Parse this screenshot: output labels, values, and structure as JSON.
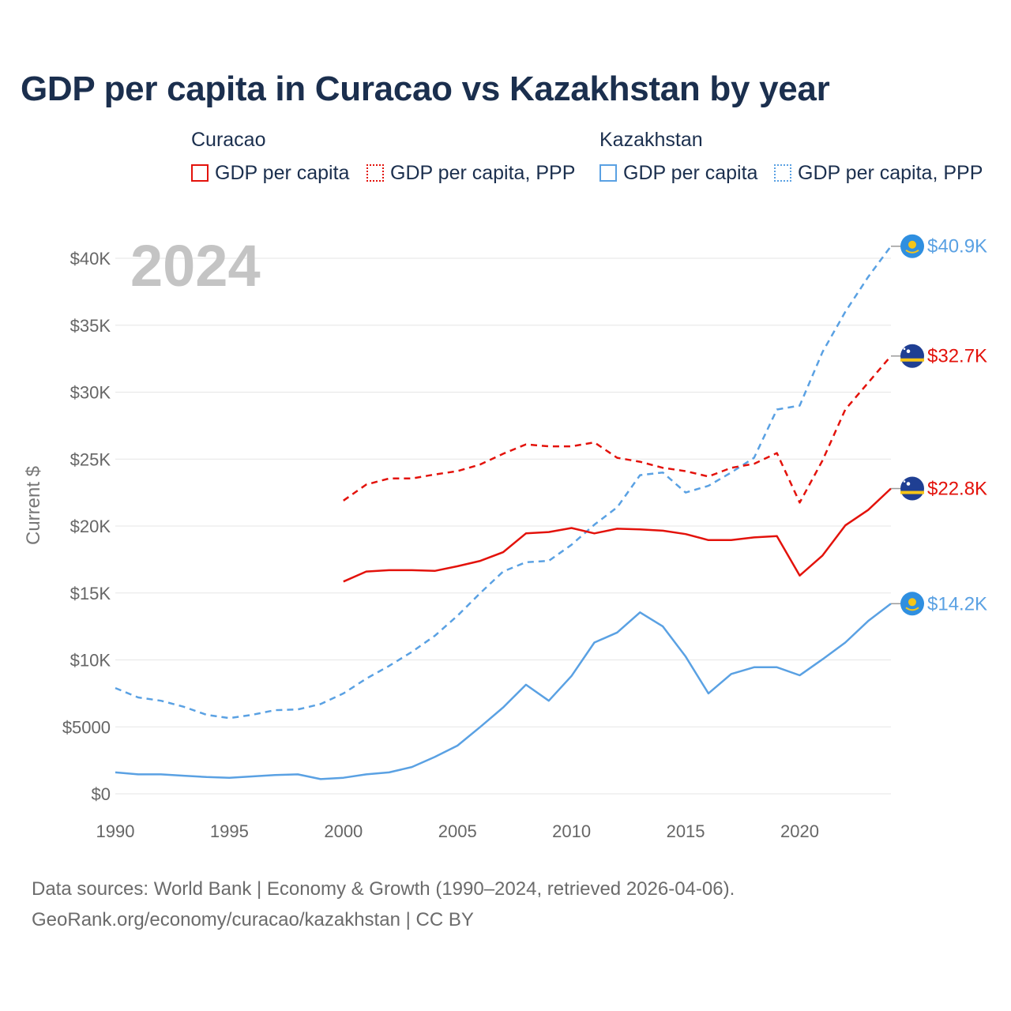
{
  "title": "GDP per capita in Curacao vs Kazakhstan by year",
  "legend": {
    "groups": [
      {
        "name": "Curacao",
        "items": [
          "GDP per capita",
          "GDP per capita, PPP"
        ]
      },
      {
        "name": "Kazakhstan",
        "items": [
          "GDP per capita",
          "GDP per capita, PPP"
        ]
      }
    ]
  },
  "colors": {
    "curacao": "#e3120b",
    "kazakhstan": "#5aa1e3",
    "text": "#1b2f4e",
    "muted": "#666666",
    "grid": "#e6e6e6"
  },
  "year_watermark": "2024",
  "chart_data": {
    "type": "line",
    "title": "GDP per capita in Curacao vs Kazakhstan by year",
    "xlabel": "",
    "ylabel": "Current $",
    "xlim": [
      1990,
      2024
    ],
    "ylim": [
      0,
      42000
    ],
    "x_ticks": [
      1990,
      1995,
      2000,
      2005,
      2010,
      2015,
      2020
    ],
    "x_tick_labels": [
      "1990",
      "1995",
      "2000",
      "2005",
      "2010",
      "2015",
      "2020"
    ],
    "y_ticks": [
      0,
      5000,
      10000,
      15000,
      20000,
      25000,
      30000,
      35000,
      40000
    ],
    "y_tick_labels": [
      "$0",
      "$5000",
      "$10K",
      "$15K",
      "$20K",
      "$25K",
      "$30K",
      "$35K",
      "$40K"
    ],
    "grid": true,
    "series": [
      {
        "name": "Kazakhstan GDP per capita, PPP",
        "country": "kazakhstan",
        "style": "dashed",
        "end_label": "$40.9K",
        "x": [
          1990,
          1991,
          1992,
          1993,
          1994,
          1995,
          1996,
          1997,
          1998,
          1999,
          2000,
          2001,
          2002,
          2003,
          2004,
          2005,
          2006,
          2007,
          2008,
          2009,
          2010,
          2011,
          2012,
          2013,
          2014,
          2015,
          2016,
          2017,
          2018,
          2019,
          2020,
          2021,
          2022,
          2023,
          2024
        ],
        "values": [
          7900,
          7200,
          6950,
          6500,
          5900,
          5650,
          5900,
          6250,
          6300,
          6700,
          7500,
          8600,
          9550,
          10600,
          11800,
          13300,
          15000,
          16600,
          17300,
          17400,
          18600,
          20100,
          21400,
          23800,
          24000,
          22500,
          23000,
          24000,
          25100,
          28700,
          29000,
          33000,
          36000,
          38600,
          40900
        ]
      },
      {
        "name": "Curacao GDP per capita, PPP",
        "country": "curacao",
        "style": "dashed",
        "end_label": "$32.7K",
        "x": [
          2000,
          2001,
          2002,
          2003,
          2004,
          2005,
          2006,
          2007,
          2008,
          2009,
          2010,
          2011,
          2012,
          2013,
          2014,
          2015,
          2016,
          2017,
          2018,
          2019,
          2020,
          2021,
          2022,
          2023,
          2024
        ],
        "values": [
          21900,
          23100,
          23550,
          23550,
          23850,
          24100,
          24600,
          25400,
          26100,
          25950,
          25950,
          26250,
          25100,
          24800,
          24350,
          24100,
          23700,
          24350,
          24650,
          25450,
          21750,
          24900,
          28700,
          30700,
          32700
        ]
      },
      {
        "name": "Curacao GDP per capita",
        "country": "curacao",
        "style": "solid",
        "end_label": "$22.8K",
        "x": [
          2000,
          2001,
          2002,
          2003,
          2004,
          2005,
          2006,
          2007,
          2008,
          2009,
          2010,
          2011,
          2012,
          2013,
          2014,
          2015,
          2016,
          2017,
          2018,
          2019,
          2020,
          2021,
          2022,
          2023,
          2024
        ],
        "values": [
          15850,
          16600,
          16700,
          16700,
          16650,
          17000,
          17400,
          18050,
          19450,
          19550,
          19850,
          19450,
          19800,
          19750,
          19650,
          19400,
          18950,
          18950,
          19150,
          19250,
          16300,
          17800,
          20050,
          21200,
          22800
        ]
      },
      {
        "name": "Kazakhstan GDP per capita",
        "country": "kazakhstan",
        "style": "solid",
        "end_label": "$14.2K",
        "x": [
          1990,
          1991,
          1992,
          1993,
          1994,
          1995,
          1996,
          1997,
          1998,
          1999,
          2000,
          2001,
          2002,
          2003,
          2004,
          2005,
          2006,
          2007,
          2008,
          2009,
          2010,
          2011,
          2012,
          2013,
          2014,
          2015,
          2016,
          2017,
          2018,
          2019,
          2020,
          2021,
          2022,
          2023,
          2024
        ],
        "values": [
          1600,
          1450,
          1450,
          1350,
          1250,
          1200,
          1300,
          1400,
          1450,
          1100,
          1200,
          1450,
          1600,
          2000,
          2750,
          3600,
          5000,
          6450,
          8150,
          6950,
          8800,
          11300,
          12050,
          13550,
          12500,
          10250,
          7500,
          8950,
          9450,
          9450,
          8850,
          10050,
          11300,
          12900,
          14200
        ]
      }
    ]
  },
  "source": {
    "line1": "Data sources: World Bank | Economy & Growth (1990–2024, retrieved 2026-04-06).",
    "line2": "GeoRank.org/economy/curacao/kazakhstan | CC BY"
  }
}
